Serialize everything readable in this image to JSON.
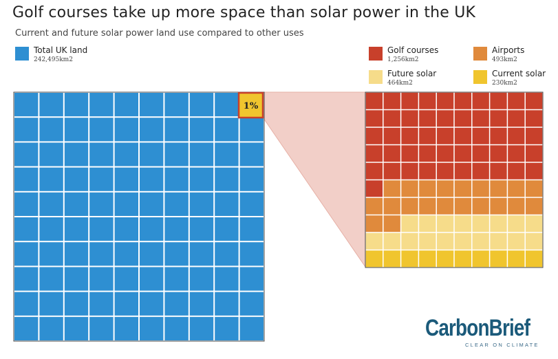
{
  "title": "Golf courses take up more space than solar power in the UK",
  "subtitle": "Current and future solar power land use compared to other uses",
  "legend": {
    "total": {
      "label": "Total UK land",
      "value": "242,495km2",
      "color": "#2e8fd2"
    },
    "items": [
      {
        "label": "Golf courses",
        "value": "1,256km2",
        "color": "#c8402b"
      },
      {
        "label": "Airports",
        "value": "493km2",
        "color": "#e08a3c"
      },
      {
        "label": "Future solar",
        "value": "464km2",
        "color": "#f6dc8a"
      },
      {
        "label": "Current solar",
        "value": "230km2",
        "color": "#f0c52e"
      }
    ]
  },
  "callout_label": "1%",
  "brand": {
    "name_part1": "Carbon",
    "name_part2": "Brief",
    "tagline": "CLEAR ON CLIMATE"
  },
  "chart_data": {
    "type": "waffle",
    "main_grid": {
      "rows": 10,
      "cols": 10,
      "unit": "1% of total UK land",
      "total_km2": 242495,
      "highlighted_cell": "1%"
    },
    "zoom_grid": {
      "rows": 10,
      "cols": 10,
      "unit": "0.01% of total UK land",
      "categories": [
        "Golf courses",
        "Airports",
        "Future solar",
        "Current solar"
      ],
      "values_km2": [
        1256,
        493,
        464,
        230
      ],
      "cells": [
        51,
        21,
        18,
        10
      ]
    }
  }
}
